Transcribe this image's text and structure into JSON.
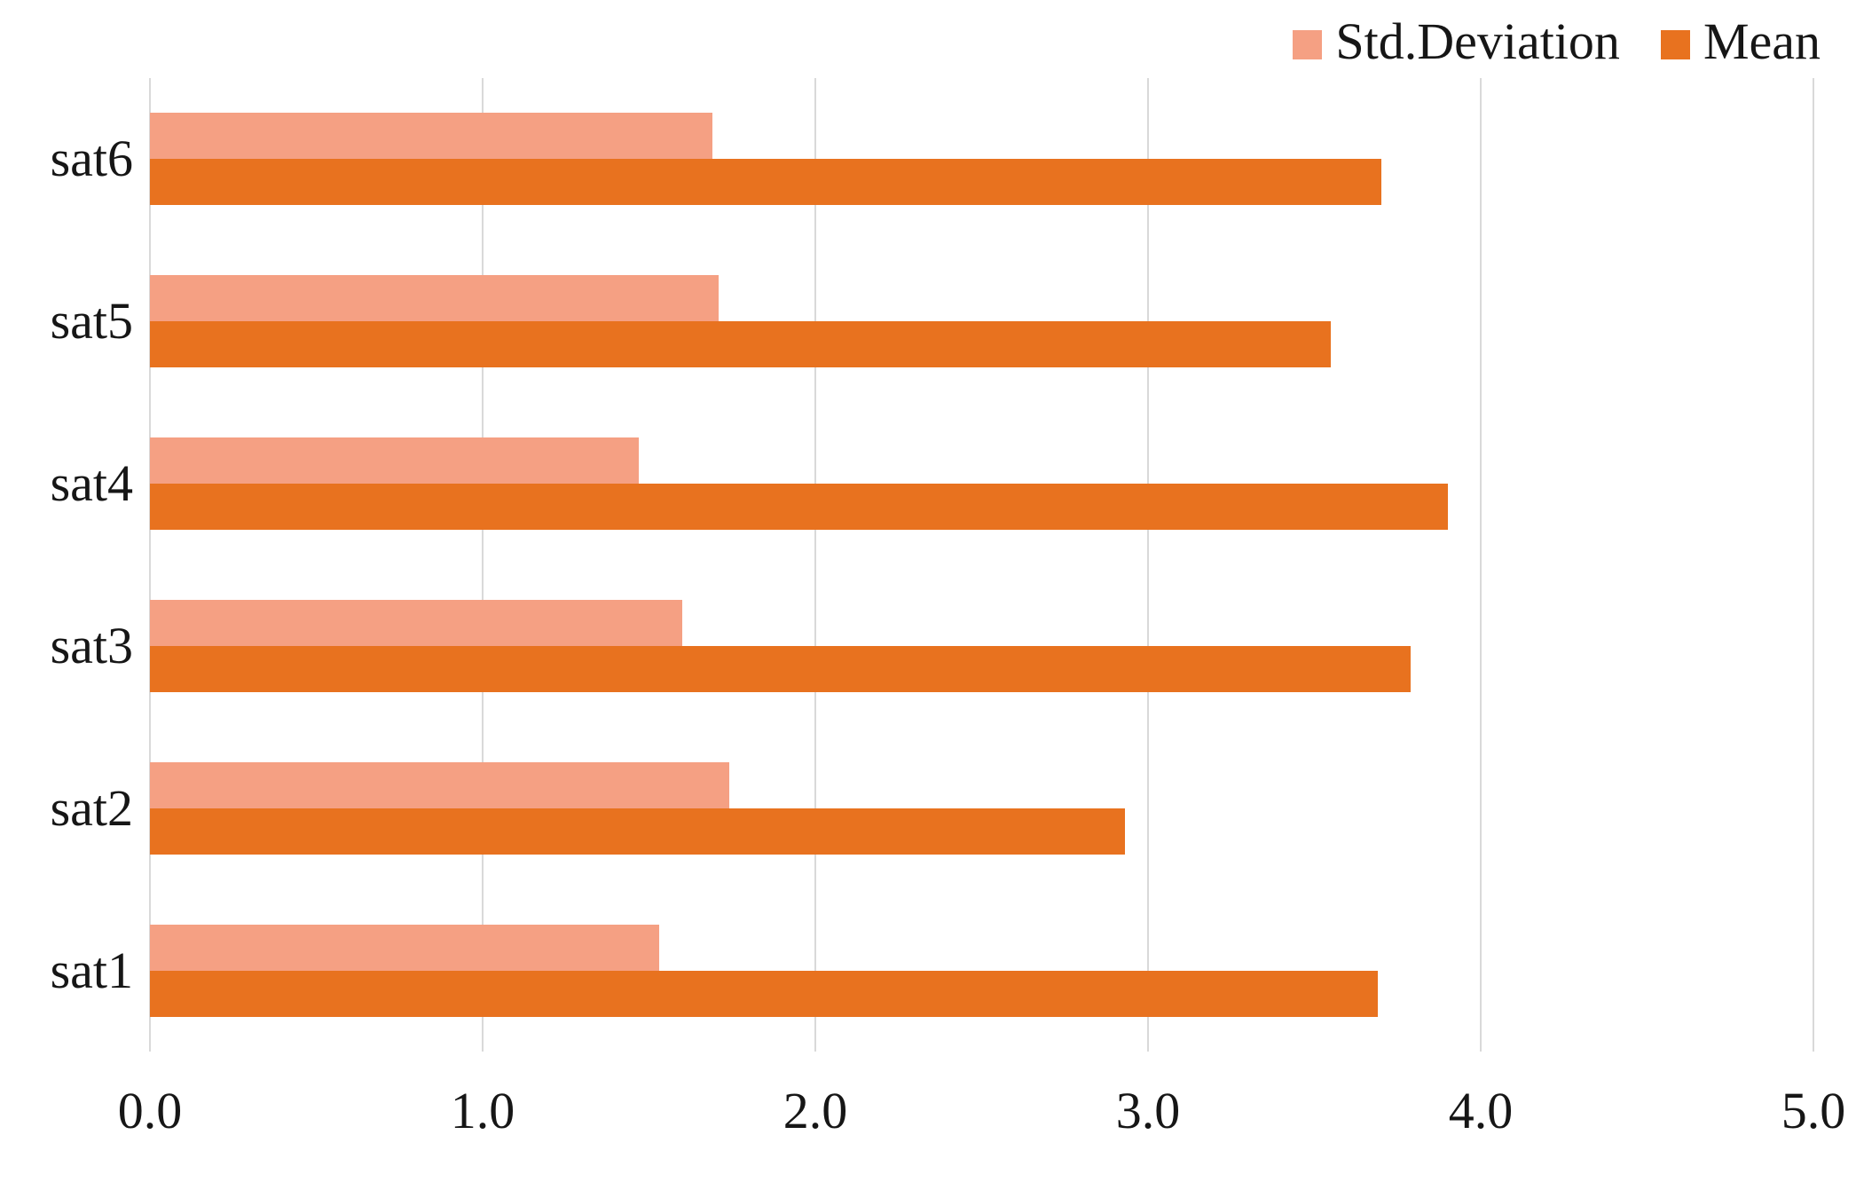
{
  "chart_data": {
    "type": "bar",
    "orientation": "horizontal",
    "title": "",
    "xlabel": "",
    "ylabel": "",
    "categories": [
      "sat1",
      "sat2",
      "sat3",
      "sat4",
      "sat5",
      "sat6"
    ],
    "category_display_order_top_to_bottom": [
      "sat6",
      "sat5",
      "sat4",
      "sat3",
      "sat2",
      "sat1"
    ],
    "series": [
      {
        "name": "Std.Deviation",
        "color": "#F5A083",
        "values": [
          1.53,
          1.74,
          1.6,
          1.47,
          1.71,
          1.69
        ]
      },
      {
        "name": "Mean",
        "color": "#E8721F",
        "values": [
          3.69,
          2.93,
          3.79,
          3.9,
          3.55,
          3.7
        ]
      }
    ],
    "xlim": [
      0.0,
      5.0
    ],
    "xticks": [
      "0.0",
      "1.0",
      "2.0",
      "3.0",
      "4.0",
      "5.0"
    ],
    "grid": true,
    "gridline_color": "#D9D9D9",
    "legend_position": "top-right",
    "bar_order_within_group_top_to_bottom": [
      "Std.Deviation",
      "Mean"
    ]
  },
  "legend": {
    "items": [
      {
        "label": "Std.Deviation",
        "swatch": "std-deviation-swatch"
      },
      {
        "label": "Mean",
        "swatch": "mean-swatch"
      }
    ]
  },
  "colors": {
    "std_deviation": "#F5A083",
    "mean": "#E8721F",
    "gridline": "#D9D9D9",
    "text": "#161616",
    "background": "#FFFFFF"
  }
}
